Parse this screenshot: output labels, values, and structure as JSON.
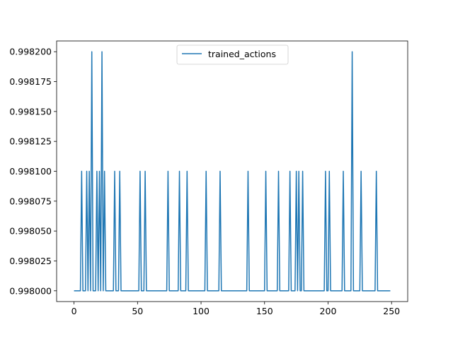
{
  "chart_data": {
    "type": "line",
    "title": "",
    "xlabel": "",
    "ylabel": "",
    "xlim": [
      -13.7,
      262.7
    ],
    "ylim": [
      0.997991,
      0.998209
    ],
    "xticks": [
      0,
      50,
      100,
      150,
      200,
      250
    ],
    "yticks": [
      0.998,
      0.998025,
      0.99805,
      0.998075,
      0.9981,
      0.998125,
      0.99815,
      0.998175,
      0.9982
    ],
    "ytick_labels": [
      "0.998000",
      "0.998025",
      "0.998050",
      "0.998075",
      "0.998100",
      "0.998125",
      "0.998150",
      "0.998175",
      "0.998200"
    ],
    "legend": {
      "position": "upper-center",
      "entries": [
        "trained_actions"
      ]
    },
    "grid": false,
    "colors": {
      "series": "#1f77b4"
    },
    "series": [
      {
        "name": "trained_actions",
        "baseline": 0.998,
        "x_range": [
          0,
          249
        ],
        "spikes": [
          {
            "x": 6,
            "y": 0.9981
          },
          {
            "x": 10,
            "y": 0.9981
          },
          {
            "x": 12,
            "y": 0.9981
          },
          {
            "x": 14,
            "y": 0.9982
          },
          {
            "x": 18,
            "y": 0.9981
          },
          {
            "x": 20,
            "y": 0.9981
          },
          {
            "x": 22,
            "y": 0.9982
          },
          {
            "x": 24,
            "y": 0.9981
          },
          {
            "x": 32,
            "y": 0.9981
          },
          {
            "x": 36,
            "y": 0.9981
          },
          {
            "x": 52,
            "y": 0.9981
          },
          {
            "x": 56,
            "y": 0.9981
          },
          {
            "x": 74,
            "y": 0.9981
          },
          {
            "x": 83,
            "y": 0.9981
          },
          {
            "x": 89,
            "y": 0.9981
          },
          {
            "x": 104,
            "y": 0.9981
          },
          {
            "x": 115,
            "y": 0.9981
          },
          {
            "x": 137,
            "y": 0.9981
          },
          {
            "x": 151,
            "y": 0.9981
          },
          {
            "x": 161,
            "y": 0.9981
          },
          {
            "x": 170,
            "y": 0.9981
          },
          {
            "x": 175,
            "y": 0.9981
          },
          {
            "x": 177,
            "y": 0.9981
          },
          {
            "x": 180,
            "y": 0.9981
          },
          {
            "x": 198,
            "y": 0.9981
          },
          {
            "x": 201,
            "y": 0.9981
          },
          {
            "x": 212,
            "y": 0.9981
          },
          {
            "x": 219,
            "y": 0.9982
          },
          {
            "x": 226,
            "y": 0.9981
          },
          {
            "x": 238,
            "y": 0.9981
          }
        ]
      }
    ]
  }
}
